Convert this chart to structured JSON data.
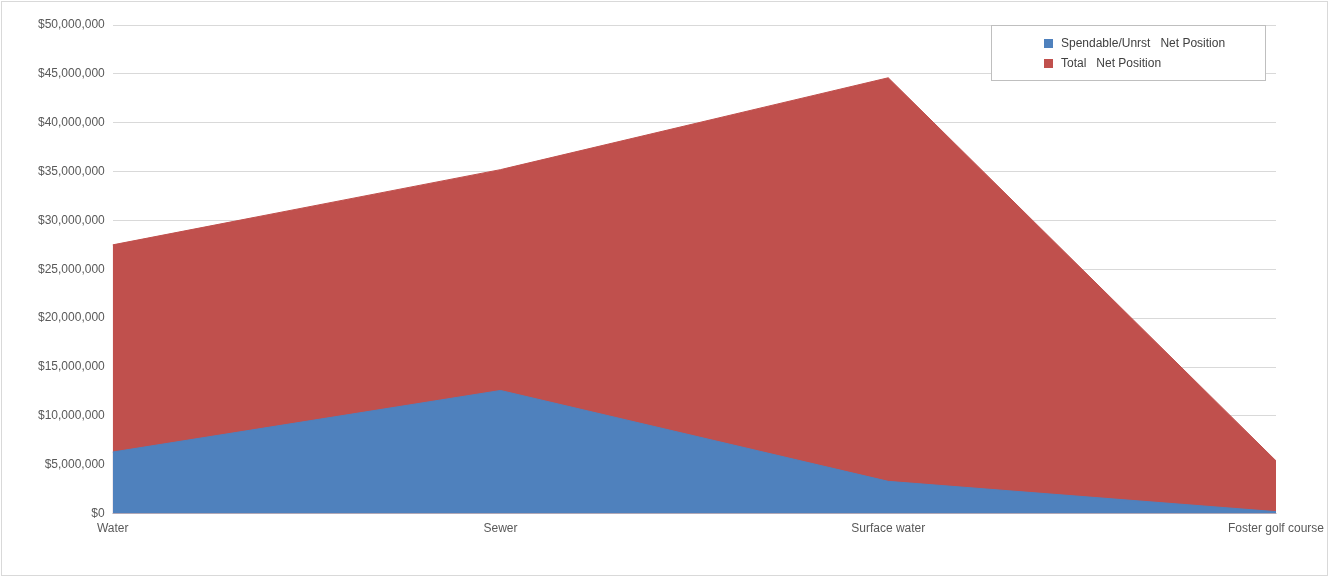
{
  "chart_data": {
    "type": "area",
    "categories": [
      "Water",
      "Sewer",
      "Surface water",
      "Foster golf course"
    ],
    "series": [
      {
        "name": "Spendable/Unrst   Net Position",
        "color": "#4f81bd",
        "values": [
          6300000,
          12600000,
          3300000,
          200000
        ]
      },
      {
        "name": "Total   Net Position",
        "color": "#c0504d",
        "values": [
          27500000,
          35200000,
          44600000,
          5400000
        ]
      }
    ],
    "ylim": [
      0,
      50000000
    ],
    "yticks": [
      {
        "value": 0,
        "label": "$0"
      },
      {
        "value": 5000000,
        "label": "$5,000,000"
      },
      {
        "value": 10000000,
        "label": "$10,000,000"
      },
      {
        "value": 15000000,
        "label": "$15,000,000"
      },
      {
        "value": 20000000,
        "label": "$20,000,000"
      },
      {
        "value": 25000000,
        "label": "$25,000,000"
      },
      {
        "value": 30000000,
        "label": "$30,000,000"
      },
      {
        "value": 35000000,
        "label": "$35,000,000"
      },
      {
        "value": 40000000,
        "label": "$40,000,000"
      },
      {
        "value": 45000000,
        "label": "$45,000,000"
      },
      {
        "value": 50000000,
        "label": "$50,000,000"
      }
    ],
    "grid": "y",
    "legend": "top right"
  }
}
